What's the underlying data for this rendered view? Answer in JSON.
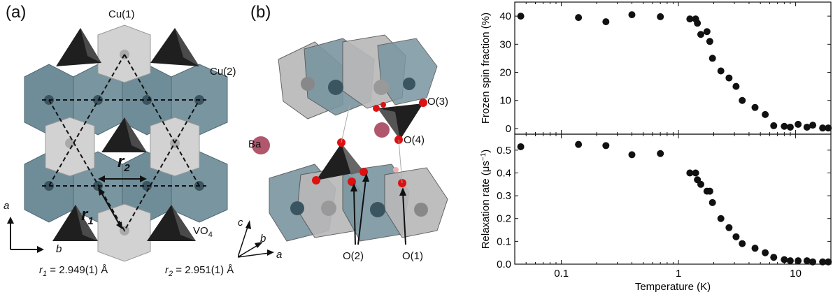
{
  "panel_a": {
    "label": "(a)",
    "cu1": "Cu(1)",
    "cu2": "Cu(2)",
    "r2": "r",
    "r2_sub": "2",
    "r1": "r",
    "r1_sub": "1",
    "vo4": "VO",
    "vo4_sub": "4",
    "axis_a": "a",
    "axis_b": "b",
    "dist1_sym": "r",
    "dist1_sub": "1",
    "dist1_val": " = 2.949(1) Å",
    "dist2_sym": "r",
    "dist2_sub": "2",
    "dist2_val": " = 2.951(1) Å"
  },
  "panel_b": {
    "label": "(b)",
    "ba": "Ba",
    "o3": "O(3)",
    "o4": "O(4)",
    "o2": "O(2)",
    "o1": "O(1)",
    "axis_c": "c",
    "axis_b": "b",
    "axis_a": "a"
  },
  "colors": {
    "copper_octahedra": "#6f8d99",
    "light_octahedra": "#c8c8c8",
    "vo4_tetrahedra": "#222222",
    "oxygen": "#dd1111",
    "barium": "#b0566d",
    "markers": "#111111"
  },
  "chart_data": [
    {
      "type": "scatter",
      "title": "",
      "xlabel": "",
      "ylabel": "Frozen spin fraction (%)",
      "xscale": "log",
      "xlim": [
        0.04,
        20
      ],
      "ylim": [
        -2,
        45
      ],
      "yticks": [
        0,
        10,
        20,
        30,
        40
      ],
      "x": [
        0.045,
        0.14,
        0.24,
        0.4,
        0.7,
        1.25,
        1.4,
        1.45,
        1.55,
        1.75,
        1.85,
        1.95,
        2.3,
        2.7,
        3.1,
        3.5,
        4.5,
        5.5,
        6.5,
        8.0,
        9.0,
        10.5,
        12.5,
        14.0,
        17.0,
        19.0
      ],
      "y": [
        40.0,
        39.5,
        38.0,
        40.5,
        39.8,
        39.0,
        39.0,
        37.5,
        33.5,
        34.5,
        31.0,
        25.0,
        20.5,
        18.0,
        15.0,
        10.0,
        7.5,
        5.0,
        1.0,
        0.8,
        0.5,
        1.5,
        0.5,
        1.2,
        0.2,
        0.2
      ]
    },
    {
      "type": "scatter",
      "title": "",
      "xlabel": "Temperature (K)",
      "ylabel": "Relaxation rate (μs",
      "ylabel_sup": "−1",
      "ylabel_close": ")",
      "xscale": "log",
      "xlim": [
        0.04,
        20
      ],
      "ylim": [
        0,
        0.57
      ],
      "yticks": [
        0.0,
        0.1,
        0.2,
        0.3,
        0.4,
        0.5
      ],
      "ytick_labels": [
        "0.0",
        "0.1",
        "0.2",
        "0.3",
        "0.4",
        "0.5"
      ],
      "xticks": [
        0.1,
        1,
        10
      ],
      "xtick_labels": [
        "0.1",
        "1",
        "10"
      ],
      "x": [
        0.045,
        0.14,
        0.24,
        0.4,
        0.7,
        1.25,
        1.4,
        1.45,
        1.55,
        1.75,
        1.85,
        1.95,
        2.3,
        2.7,
        3.1,
        3.5,
        4.5,
        5.5,
        6.5,
        8.0,
        9.0,
        10.5,
        12.5,
        14.0,
        17.0,
        19.0
      ],
      "y": [
        0.515,
        0.525,
        0.52,
        0.48,
        0.485,
        0.4,
        0.4,
        0.37,
        0.35,
        0.32,
        0.32,
        0.27,
        0.2,
        0.16,
        0.12,
        0.09,
        0.07,
        0.05,
        0.03,
        0.02,
        0.015,
        0.015,
        0.015,
        0.01,
        0.01,
        0.01
      ]
    }
  ]
}
